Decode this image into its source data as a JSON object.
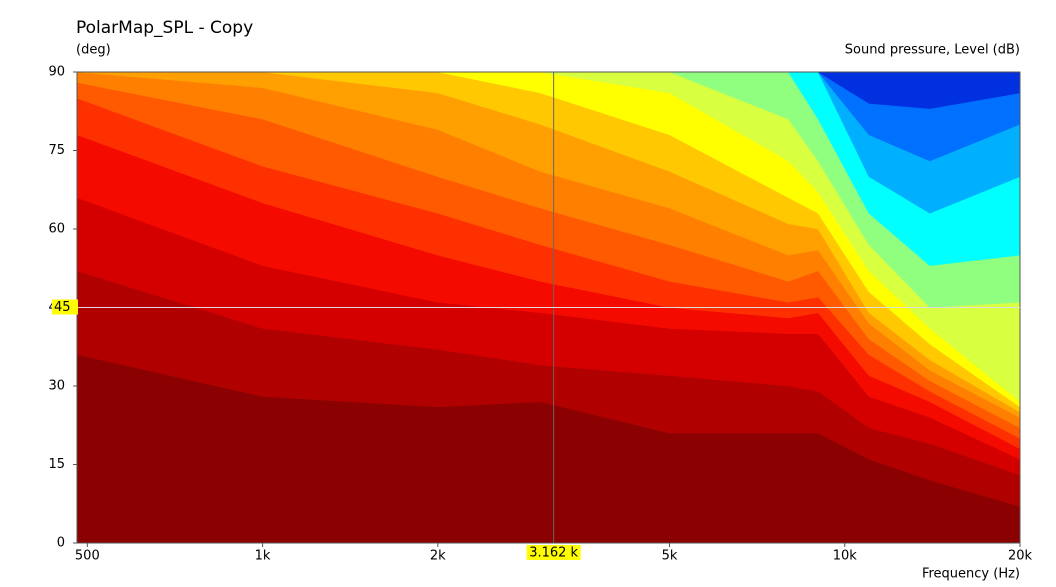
{
  "chart_data": {
    "type": "contour",
    "title": "PolarMap_SPL - Copy",
    "y_label": "(deg)",
    "z_label": "Sound pressure, Level  (dB)",
    "x_label": "Frequency  (Hz)",
    "x_scale": "log",
    "x": [
      480,
      1000,
      2000,
      3000,
      5000,
      8000,
      9000,
      11000,
      14000,
      20000
    ],
    "xlim": [
      480,
      20000
    ],
    "xticks": [
      500,
      {
        "value": 1000,
        "label": "1k"
      },
      {
        "value": 2000,
        "label": "2k"
      },
      {
        "value": 5000,
        "label": "5k"
      },
      {
        "value": 10000,
        "label": "10k"
      },
      {
        "value": 20000,
        "label": "20k"
      }
    ],
    "ylim": [
      0,
      90
    ],
    "yticks": [
      0,
      15,
      30,
      45,
      60,
      75,
      90
    ],
    "cursor": {
      "x": {
        "value": 3162,
        "label": "3.162 k"
      },
      "y": 45
    },
    "series": [
      {
        "color": "#8b0000",
        "values": [
          36,
          28,
          26,
          27,
          21,
          21,
          21,
          16,
          12,
          7
        ]
      },
      {
        "color": "#b00000",
        "values": [
          52,
          41,
          37,
          34,
          32,
          30,
          29,
          22,
          19,
          13
        ]
      },
      {
        "color": "#d40000",
        "values": [
          66,
          53,
          46,
          44,
          41,
          40,
          40,
          28,
          24,
          16
        ]
      },
      {
        "color": "#f50a00",
        "values": [
          78,
          65,
          55,
          50,
          45,
          43,
          44,
          32,
          27,
          18
        ]
      },
      {
        "color": "#ff3000",
        "values": [
          85,
          72,
          63,
          57,
          50,
          46,
          47,
          36,
          29,
          20
        ]
      },
      {
        "color": "#ff5a00",
        "values": [
          88,
          81,
          70,
          64,
          57,
          50,
          52,
          39,
          31,
          22
        ]
      },
      {
        "color": "#ff8000",
        "values": [
          90,
          87,
          79,
          71,
          64,
          55,
          56,
          42,
          33,
          24
        ]
      },
      {
        "color": "#ffa000",
        "values": [
          90,
          90,
          86,
          80,
          71,
          61,
          60,
          44,
          35,
          25
        ]
      },
      {
        "color": "#ffc800",
        "values": [
          90,
          90,
          90,
          86,
          78,
          66,
          63,
          48,
          38,
          26
        ]
      },
      {
        "color": "#ffff00",
        "values": [
          90,
          90,
          90,
          90,
          86,
          73,
          67,
          52,
          41,
          27
        ]
      },
      {
        "color": "#d8ff40",
        "values": [
          90,
          90,
          90,
          90,
          90,
          81,
          73,
          57,
          45,
          46
        ]
      },
      {
        "color": "#90ff80",
        "values": [
          90,
          90,
          90,
          90,
          90,
          90,
          81,
          63,
          53,
          55
        ]
      },
      {
        "color": "#00ffff",
        "values": [
          90,
          90,
          90,
          90,
          90,
          90,
          90,
          70,
          63,
          70
        ]
      },
      {
        "color": "#00b0ff",
        "values": [
          90,
          90,
          90,
          90,
          90,
          90,
          90,
          78,
          73,
          80
        ]
      },
      {
        "color": "#0070ff",
        "values": [
          90,
          90,
          90,
          90,
          90,
          90,
          90,
          84,
          83,
          86
        ]
      },
      {
        "color": "#0030e0",
        "values": [
          90,
          90,
          90,
          90,
          90,
          90,
          90,
          90,
          90,
          90
        ]
      }
    ]
  }
}
